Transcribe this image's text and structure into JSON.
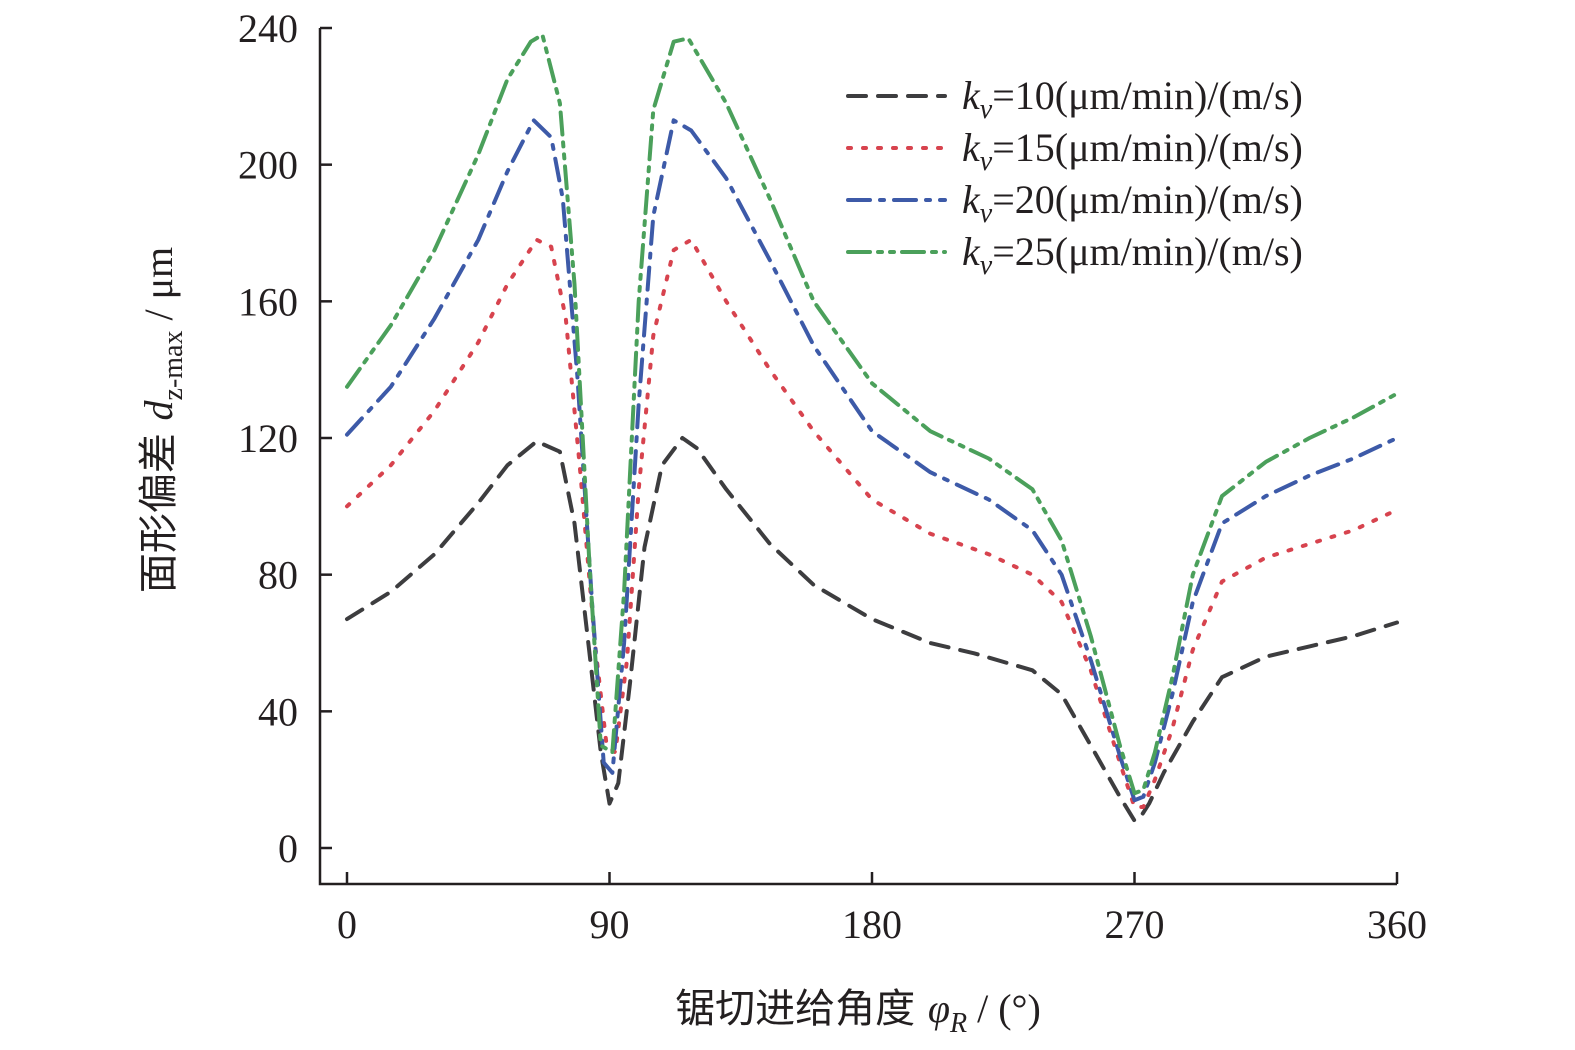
{
  "chart_data": {
    "type": "line",
    "xlabel": {
      "main": "锯切进给角度 ",
      "sym": "φ",
      "sub": "R",
      "unit": " / (°)"
    },
    "ylabel": {
      "main": "面形偏差 ",
      "sym": "d",
      "sub": "z-max",
      "unit": " / μm"
    },
    "xlim": [
      0,
      360
    ],
    "ylim": [
      0,
      240
    ],
    "x_ticks": [
      "0",
      "90",
      "180",
      "270",
      "360"
    ],
    "y_ticks": [
      "0",
      "40",
      "80",
      "120",
      "160",
      "200",
      "240"
    ],
    "grid": false,
    "legend_position": "top-right",
    "series": [
      {
        "name": {
          "sym": "k",
          "sub": "v",
          "rest": "=10(μm/min)/(m/s)"
        },
        "style": "dashed",
        "color": "#3d3d3f",
        "x": [
          0,
          15,
          30,
          45,
          55,
          65,
          73,
          78,
          83,
          87,
          90,
          93,
          97,
          102,
          108,
          115,
          120,
          130,
          145,
          160,
          180,
          200,
          215,
          235,
          245,
          255,
          265,
          270,
          272,
          275,
          280,
          290,
          300,
          315,
          330,
          345,
          360
        ],
        "y": [
          67,
          75,
          86,
          101,
          112,
          119,
          116,
          95,
          58,
          28,
          13,
          19,
          48,
          88,
          112,
          120,
          117,
          105,
          89,
          77,
          67,
          60,
          57,
          52,
          45,
          30,
          15,
          8,
          9,
          13,
          22,
          37,
          50,
          56,
          59,
          62,
          66
        ]
      },
      {
        "name": {
          "sym": "k",
          "sub": "v",
          "rest": "=15(μm/min)/(m/s)"
        },
        "style": "dotted",
        "color": "#d7434e",
        "x": [
          0,
          15,
          30,
          45,
          55,
          65,
          70,
          75,
          80,
          85,
          89,
          92,
          96,
          100,
          105,
          112,
          118,
          130,
          145,
          160,
          180,
          200,
          220,
          235,
          245,
          255,
          265,
          270,
          273,
          277,
          283,
          290,
          300,
          315,
          330,
          345,
          360
        ],
        "y": [
          100,
          112,
          128,
          148,
          165,
          178,
          176,
          155,
          110,
          60,
          30,
          28,
          55,
          105,
          150,
          175,
          178,
          160,
          140,
          122,
          102,
          92,
          86,
          80,
          72,
          52,
          25,
          12,
          12,
          20,
          35,
          58,
          78,
          85,
          89,
          93,
          99
        ]
      },
      {
        "name": {
          "sym": "k",
          "sub": "v",
          "rest": "=20(μm/min)/(m/s)"
        },
        "style": "dashdot",
        "color": "#3d5aa8",
        "x": [
          0,
          15,
          30,
          45,
          55,
          64,
          70,
          74,
          79,
          84,
          88,
          91,
          95,
          100,
          105,
          112,
          118,
          130,
          145,
          160,
          180,
          200,
          220,
          235,
          245,
          255,
          265,
          270,
          273,
          277,
          283,
          290,
          300,
          315,
          330,
          345,
          360
        ],
        "y": [
          121,
          135,
          155,
          178,
          198,
          213,
          208,
          190,
          138,
          72,
          25,
          22,
          60,
          130,
          185,
          213,
          210,
          196,
          172,
          147,
          122,
          110,
          102,
          93,
          80,
          55,
          27,
          14,
          15,
          25,
          45,
          72,
          95,
          103,
          109,
          114,
          120
        ]
      },
      {
        "name": {
          "sym": "k",
          "sub": "v",
          "rest": "=25(μm/min)/(m/s)"
        },
        "style": "dashdotdot",
        "color": "#4ba05b",
        "x": [
          0,
          15,
          30,
          45,
          55,
          63,
          67,
          73,
          78,
          83,
          87,
          91,
          95,
          100,
          105,
          112,
          117,
          130,
          145,
          160,
          180,
          200,
          220,
          235,
          245,
          255,
          265,
          270,
          273,
          277,
          283,
          290,
          300,
          315,
          330,
          345,
          360
        ],
        "y": [
          135,
          153,
          175,
          203,
          225,
          236,
          238,
          218,
          165,
          85,
          30,
          28,
          75,
          160,
          216,
          236,
          237,
          218,
          190,
          160,
          136,
          122,
          114,
          105,
          90,
          62,
          30,
          16,
          17,
          28,
          50,
          80,
          103,
          113,
          120,
          126,
          133
        ]
      }
    ]
  }
}
